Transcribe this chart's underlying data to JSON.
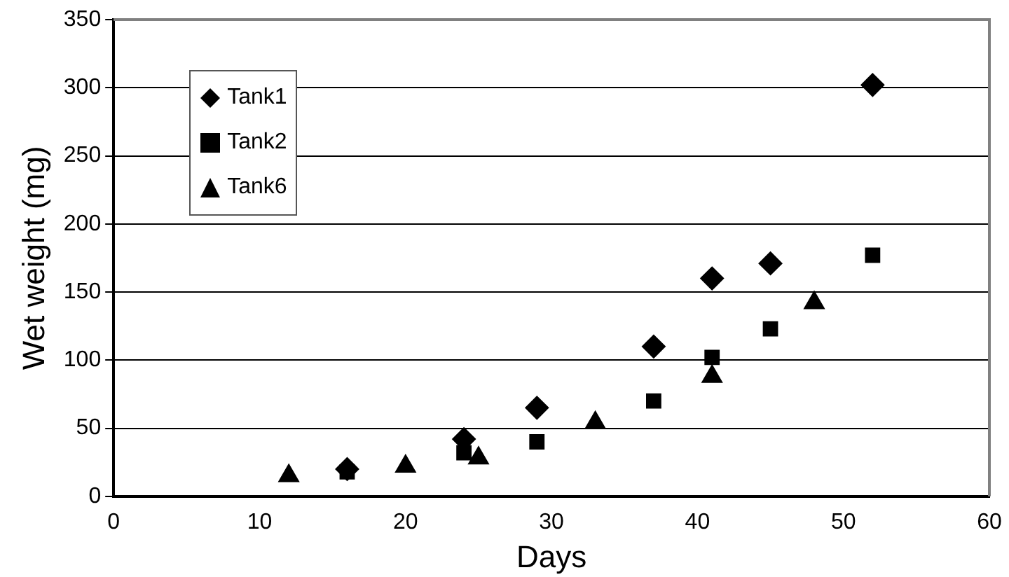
{
  "chart_data": {
    "type": "scatter",
    "xlabel": "Days",
    "ylabel": "Wet weight (mg)",
    "xlim": [
      0,
      60
    ],
    "xticks": [
      0,
      10,
      20,
      30,
      40,
      50,
      60
    ],
    "ylim": [
      0,
      350
    ],
    "yticks": [
      0,
      50,
      100,
      150,
      200,
      250,
      300,
      350
    ],
    "grid": "y",
    "legend": "top left",
    "series": [
      {
        "name": "Tank1",
        "color": "#000000",
        "marker": "diamond",
        "x": [
          16,
          24,
          29,
          37,
          41,
          45,
          52
        ],
        "values": [
          20,
          42,
          65,
          110,
          160,
          171,
          302
        ]
      },
      {
        "name": "Tank2",
        "color": "#000000",
        "marker": "square",
        "x": [
          16,
          24,
          29,
          37,
          41,
          45,
          52
        ],
        "values": [
          18,
          32,
          40,
          70,
          102,
          123,
          177
        ]
      },
      {
        "name": "Tank6",
        "color": "#000000",
        "marker": "triangle",
        "x": [
          12,
          20,
          25,
          33,
          41,
          48
        ],
        "values": [
          15,
          22,
          28,
          54,
          88,
          142
        ]
      }
    ]
  }
}
